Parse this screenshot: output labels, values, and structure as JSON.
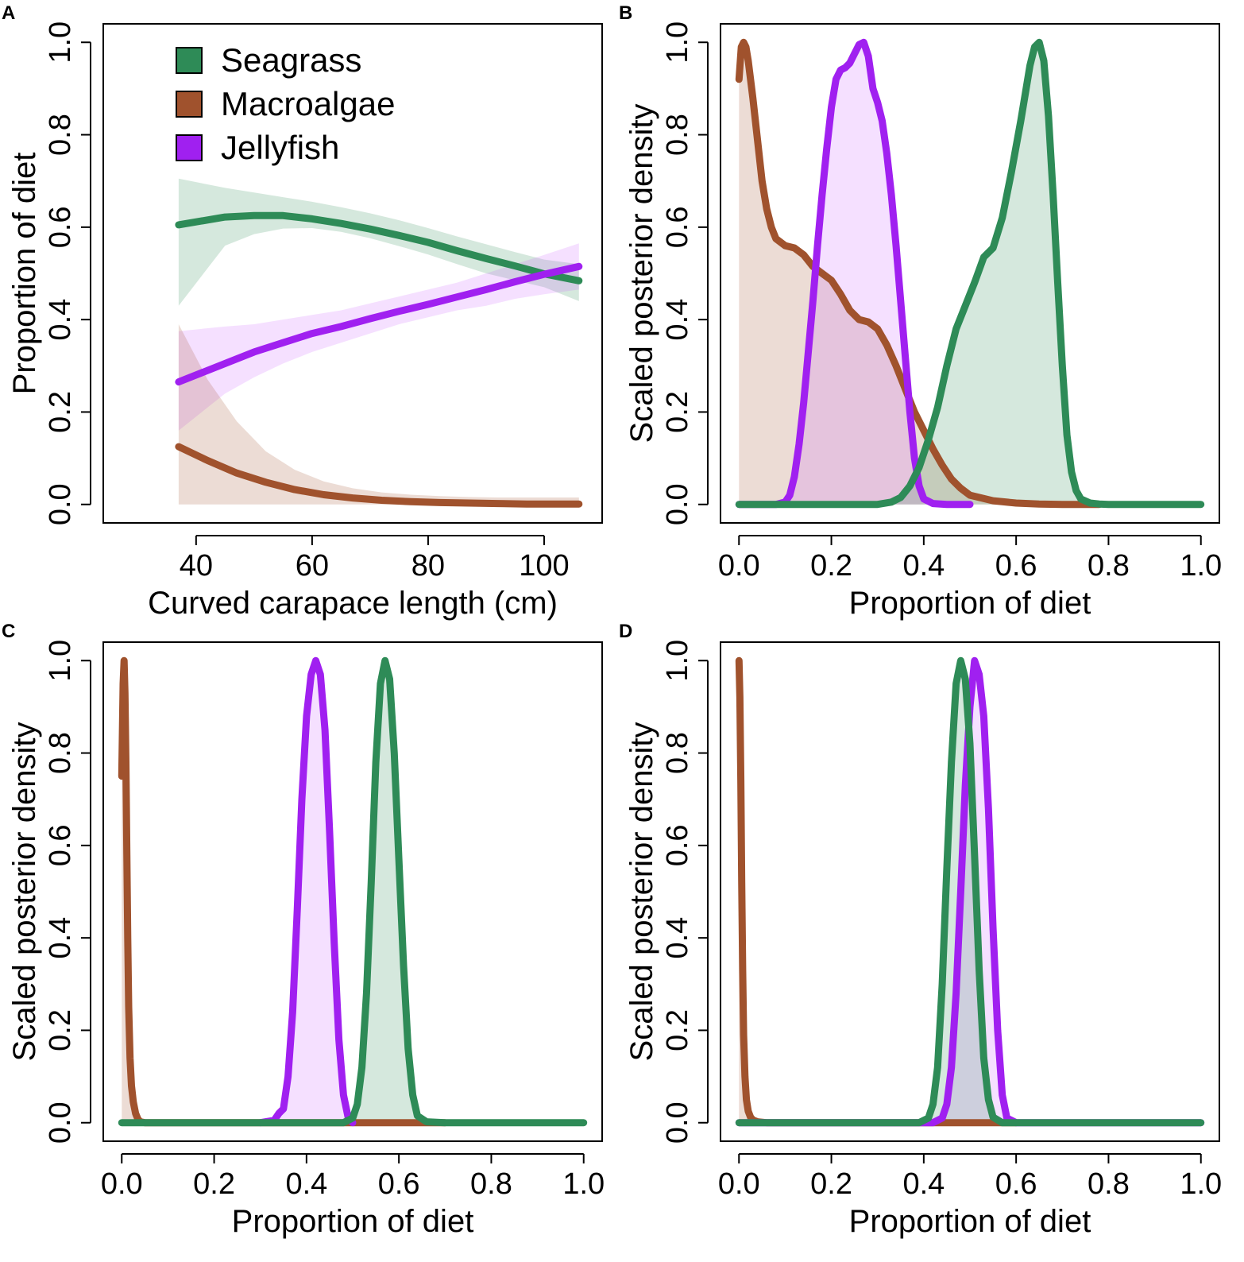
{
  "figure": {
    "series_colors": {
      "Seagrass": "#2e8b57",
      "Macroalgae": "#a0522d",
      "Jellyfish": "#a020f0"
    },
    "band_colors": {
      "Seagrass": "#2e8b57",
      "Macroalgae": "#a0522d",
      "Jellyfish": "#cc66ff"
    }
  },
  "chart_data": [
    {
      "panel": "A",
      "type": "line",
      "title": "",
      "xlabel": "Curved carapace length (cm)",
      "ylabel": "Proportion of diet",
      "xlim": [
        24,
        110
      ],
      "ylim": [
        -0.04,
        1.04
      ],
      "xticks": [
        40,
        60,
        80,
        100
      ],
      "xtick_labels": [
        "40",
        "60",
        "80",
        "100"
      ],
      "yticks": [
        0,
        0.2,
        0.4,
        0.6,
        0.8,
        1
      ],
      "ytick_labels": [
        "0.0",
        "0.2",
        "0.4",
        "0.6",
        "0.8",
        "1.0"
      ],
      "legend": {
        "placement": "top-left",
        "entries": [
          "Seagrass",
          "Macroalgae",
          "Jellyfish"
        ]
      },
      "series": [
        {
          "name": "Seagrass",
          "x": [
            37,
            45,
            50,
            55,
            60,
            65,
            70,
            75,
            80,
            85,
            90,
            95,
            100,
            106
          ],
          "y": [
            0.605,
            0.622,
            0.625,
            0.625,
            0.618,
            0.608,
            0.596,
            0.582,
            0.567,
            0.549,
            0.532,
            0.516,
            0.499,
            0.484
          ],
          "lower": [
            0.43,
            0.56,
            0.585,
            0.597,
            0.598,
            0.59,
            0.576,
            0.559,
            0.541,
            0.52,
            0.5,
            0.485,
            0.47,
            0.44
          ],
          "upper": [
            0.705,
            0.685,
            0.675,
            0.665,
            0.655,
            0.643,
            0.63,
            0.615,
            0.598,
            0.58,
            0.563,
            0.546,
            0.53,
            0.52
          ]
        },
        {
          "name": "Jellyfish",
          "x": [
            37,
            45,
            50,
            55,
            60,
            65,
            70,
            75,
            80,
            85,
            90,
            95,
            100,
            106
          ],
          "y": [
            0.265,
            0.305,
            0.33,
            0.35,
            0.37,
            0.385,
            0.402,
            0.418,
            0.433,
            0.449,
            0.465,
            0.482,
            0.498,
            0.515
          ],
          "lower": [
            0.16,
            0.24,
            0.275,
            0.305,
            0.33,
            0.35,
            0.37,
            0.39,
            0.405,
            0.42,
            0.43,
            0.445,
            0.455,
            0.465
          ],
          "upper": [
            0.375,
            0.385,
            0.39,
            0.4,
            0.41,
            0.42,
            0.435,
            0.45,
            0.465,
            0.48,
            0.5,
            0.52,
            0.54,
            0.565
          ]
        },
        {
          "name": "Macroalgae",
          "x": [
            37,
            42,
            47,
            52,
            57,
            62,
            67,
            72,
            77,
            82,
            87,
            92,
            97,
            106
          ],
          "y": [
            0.125,
            0.095,
            0.068,
            0.048,
            0.032,
            0.021,
            0.014,
            0.009,
            0.006,
            0.004,
            0.003,
            0.002,
            0.001,
            0.001
          ],
          "lower": [
            0,
            0,
            0,
            0,
            0,
            0,
            0,
            0,
            0,
            0,
            0,
            0,
            0,
            0
          ],
          "upper": [
            0.39,
            0.27,
            0.18,
            0.115,
            0.075,
            0.05,
            0.035,
            0.026,
            0.021,
            0.018,
            0.016,
            0.015,
            0.015,
            0.015
          ]
        }
      ]
    },
    {
      "panel": "B",
      "type": "area",
      "title": "",
      "xlabel": "Proportion of diet",
      "ylabel": "Scaled posterior density",
      "xlim": [
        -0.04,
        1.04
      ],
      "ylim": [
        -0.04,
        1.04
      ],
      "xticks": [
        0,
        0.2,
        0.4,
        0.6,
        0.8,
        1
      ],
      "xtick_labels": [
        "0.0",
        "0.2",
        "0.4",
        "0.6",
        "0.8",
        "1.0"
      ],
      "yticks": [
        0,
        0.2,
        0.4,
        0.6,
        0.8,
        1
      ],
      "ytick_labels": [
        "0.0",
        "0.2",
        "0.4",
        "0.6",
        "0.8",
        "1.0"
      ],
      "series": [
        {
          "name": "Macroalgae",
          "x": [
            0,
            0.005,
            0.01,
            0.015,
            0.02,
            0.03,
            0.04,
            0.05,
            0.06,
            0.07,
            0.08,
            0.1,
            0.12,
            0.14,
            0.16,
            0.18,
            0.2,
            0.22,
            0.24,
            0.26,
            0.28,
            0.3,
            0.32,
            0.34,
            0.36,
            0.38,
            0.4,
            0.42,
            0.44,
            0.46,
            0.48,
            0.5,
            0.55,
            0.6,
            0.65,
            0.7,
            0.75,
            0.78
          ],
          "y": [
            0.92,
            0.99,
            1.0,
            0.99,
            0.96,
            0.88,
            0.79,
            0.7,
            0.64,
            0.6,
            0.575,
            0.56,
            0.555,
            0.54,
            0.515,
            0.5,
            0.485,
            0.455,
            0.42,
            0.4,
            0.395,
            0.38,
            0.345,
            0.3,
            0.25,
            0.2,
            0.16,
            0.12,
            0.085,
            0.055,
            0.035,
            0.02,
            0.008,
            0.003,
            0.001,
            0,
            0,
            0
          ]
        },
        {
          "name": "Jellyfish",
          "x": [
            0,
            0.08,
            0.1,
            0.11,
            0.12,
            0.13,
            0.14,
            0.15,
            0.16,
            0.17,
            0.18,
            0.19,
            0.2,
            0.21,
            0.22,
            0.23,
            0.24,
            0.25,
            0.26,
            0.27,
            0.28,
            0.29,
            0.3,
            0.31,
            0.32,
            0.33,
            0.34,
            0.35,
            0.36,
            0.37,
            0.38,
            0.39,
            0.4,
            0.42,
            0.45,
            0.5
          ],
          "y": [
            0,
            0,
            0.005,
            0.02,
            0.06,
            0.13,
            0.22,
            0.33,
            0.44,
            0.56,
            0.67,
            0.77,
            0.86,
            0.92,
            0.94,
            0.945,
            0.955,
            0.975,
            0.995,
            1.0,
            0.97,
            0.9,
            0.87,
            0.83,
            0.76,
            0.67,
            0.56,
            0.44,
            0.32,
            0.2,
            0.1,
            0.04,
            0.012,
            0.002,
            0,
            0
          ]
        },
        {
          "name": "Seagrass",
          "x": [
            0,
            0.3,
            0.33,
            0.35,
            0.37,
            0.39,
            0.41,
            0.43,
            0.45,
            0.47,
            0.49,
            0.51,
            0.53,
            0.55,
            0.57,
            0.59,
            0.61,
            0.62,
            0.63,
            0.64,
            0.65,
            0.66,
            0.67,
            0.68,
            0.69,
            0.7,
            0.71,
            0.72,
            0.73,
            0.74,
            0.76,
            0.78,
            0.8,
            1.0
          ],
          "y": [
            0,
            0,
            0.005,
            0.015,
            0.04,
            0.08,
            0.14,
            0.21,
            0.3,
            0.38,
            0.43,
            0.48,
            0.535,
            0.555,
            0.62,
            0.72,
            0.83,
            0.89,
            0.95,
            0.99,
            1.0,
            0.96,
            0.84,
            0.67,
            0.48,
            0.3,
            0.15,
            0.07,
            0.03,
            0.012,
            0.003,
            0.001,
            0,
            0
          ]
        }
      ]
    },
    {
      "panel": "C",
      "type": "area",
      "title": "",
      "xlabel": "Proportion of diet",
      "ylabel": "Scaled posterior density",
      "xlim": [
        -0.04,
        1.04
      ],
      "ylim": [
        -0.04,
        1.04
      ],
      "xticks": [
        0,
        0.2,
        0.4,
        0.6,
        0.8,
        1
      ],
      "xtick_labels": [
        "0.0",
        "0.2",
        "0.4",
        "0.6",
        "0.8",
        "1.0"
      ],
      "yticks": [
        0,
        0.2,
        0.4,
        0.6,
        0.8,
        1
      ],
      "ytick_labels": [
        "0.0",
        "0.2",
        "0.4",
        "0.6",
        "0.8",
        "1.0"
      ],
      "series": [
        {
          "name": "Macroalgae",
          "x": [
            0,
            0.003,
            0.005,
            0.007,
            0.009,
            0.011,
            0.013,
            0.015,
            0.018,
            0.021,
            0.025,
            0.03,
            0.035,
            0.04,
            0.05,
            0.7
          ],
          "y": [
            0.75,
            0.95,
            1.0,
            0.93,
            0.78,
            0.58,
            0.4,
            0.25,
            0.14,
            0.08,
            0.045,
            0.02,
            0.008,
            0.002,
            0,
            0
          ]
        },
        {
          "name": "Jellyfish",
          "x": [
            0.3,
            0.33,
            0.34,
            0.35,
            0.36,
            0.37,
            0.38,
            0.39,
            0.4,
            0.41,
            0.42,
            0.43,
            0.44,
            0.45,
            0.46,
            0.47,
            0.48,
            0.49,
            0.5
          ],
          "y": [
            0,
            0.005,
            0.02,
            0.03,
            0.1,
            0.24,
            0.46,
            0.7,
            0.88,
            0.97,
            1.0,
            0.97,
            0.85,
            0.63,
            0.39,
            0.18,
            0.06,
            0.012,
            0
          ]
        },
        {
          "name": "Seagrass",
          "x": [
            0,
            0.48,
            0.5,
            0.51,
            0.52,
            0.53,
            0.54,
            0.55,
            0.56,
            0.57,
            0.58,
            0.59,
            0.6,
            0.61,
            0.62,
            0.63,
            0.64,
            0.66,
            0.7,
            1.0
          ],
          "y": [
            0,
            0,
            0.01,
            0.04,
            0.12,
            0.28,
            0.52,
            0.78,
            0.95,
            1.0,
            0.96,
            0.8,
            0.57,
            0.34,
            0.16,
            0.06,
            0.015,
            0.002,
            0,
            0
          ]
        }
      ]
    },
    {
      "panel": "D",
      "type": "area",
      "title": "",
      "xlabel": "Proportion of diet",
      "ylabel": "Scaled posterior density",
      "xlim": [
        -0.04,
        1.04
      ],
      "ylim": [
        -0.04,
        1.04
      ],
      "xticks": [
        0,
        0.2,
        0.4,
        0.6,
        0.8,
        1
      ],
      "xtick_labels": [
        "0.0",
        "0.2",
        "0.4",
        "0.6",
        "0.8",
        "1.0"
      ],
      "yticks": [
        0,
        0.2,
        0.4,
        0.6,
        0.8,
        1
      ],
      "ytick_labels": [
        "0.0",
        "0.2",
        "0.4",
        "0.6",
        "0.8",
        "1.0"
      ],
      "series": [
        {
          "name": "Macroalgae",
          "x": [
            0,
            0.002,
            0.004,
            0.006,
            0.008,
            0.01,
            0.013,
            0.016,
            0.02,
            0.025,
            0.03,
            0.04,
            0.06,
            0.6
          ],
          "y": [
            1.0,
            0.92,
            0.74,
            0.52,
            0.33,
            0.19,
            0.1,
            0.05,
            0.025,
            0.012,
            0.006,
            0.002,
            0,
            0
          ]
        },
        {
          "name": "Jellyfish",
          "x": [
            0,
            0.42,
            0.44,
            0.45,
            0.46,
            0.47,
            0.48,
            0.49,
            0.5,
            0.51,
            0.52,
            0.53,
            0.54,
            0.55,
            0.56,
            0.57,
            0.58,
            0.6,
            1.0
          ],
          "y": [
            0,
            0,
            0.01,
            0.04,
            0.12,
            0.28,
            0.5,
            0.73,
            0.9,
            1.0,
            0.97,
            0.88,
            0.68,
            0.42,
            0.2,
            0.06,
            0.01,
            0,
            0
          ]
        },
        {
          "name": "Seagrass",
          "x": [
            0,
            0.39,
            0.41,
            0.42,
            0.43,
            0.44,
            0.45,
            0.46,
            0.47,
            0.48,
            0.49,
            0.5,
            0.51,
            0.52,
            0.53,
            0.54,
            0.55,
            0.57,
            1.0
          ],
          "y": [
            0,
            0,
            0.01,
            0.04,
            0.12,
            0.3,
            0.55,
            0.78,
            0.95,
            1.0,
            0.96,
            0.82,
            0.58,
            0.33,
            0.14,
            0.05,
            0.012,
            0,
            0
          ]
        }
      ]
    }
  ]
}
